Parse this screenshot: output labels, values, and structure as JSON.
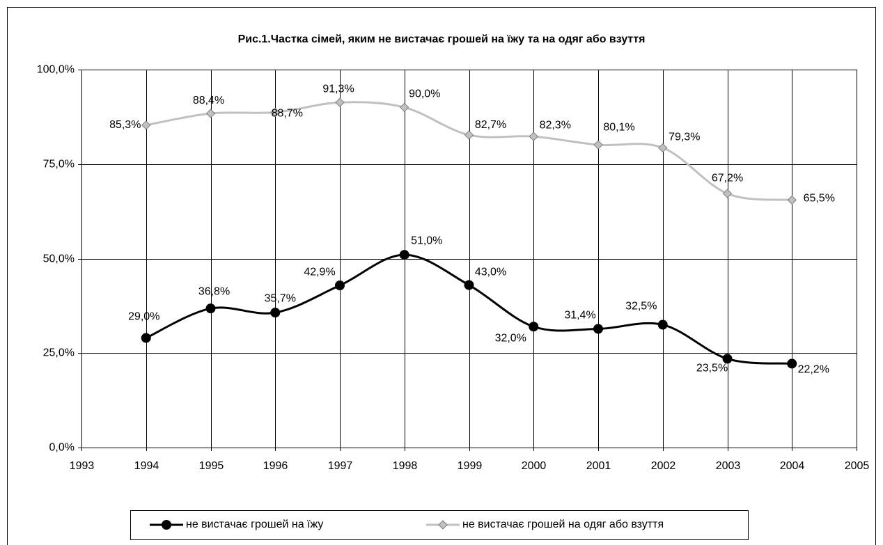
{
  "chart_data": {
    "type": "line",
    "title": "Рис.1.Частка сімей, яким не вистачає грошей на їжу та на одяг або взуття",
    "x": [
      1994,
      1995,
      1996,
      1997,
      1998,
      1999,
      2000,
      2001,
      2002,
      2003,
      2004
    ],
    "xlim": [
      1993,
      2005
    ],
    "xticks": [
      1993,
      1994,
      1995,
      1996,
      1997,
      1998,
      1999,
      2000,
      2001,
      2002,
      2003,
      2004,
      2005
    ],
    "ylim": [
      0,
      100
    ],
    "yticks": [
      {
        "value": 0,
        "label": "0,0%"
      },
      {
        "value": 25,
        "label": "25,0%"
      },
      {
        "value": 50,
        "label": "50,0%"
      },
      {
        "value": 75,
        "label": "75,0%"
      },
      {
        "value": 100,
        "label": "100,0%"
      }
    ],
    "grid": true,
    "smooth": true,
    "legend": "bottom",
    "series": [
      {
        "name": "не вистачає грошей на їжу",
        "color": "#000000",
        "marker": "circle",
        "values": [
          29.0,
          36.8,
          35.7,
          42.9,
          51.0,
          43.0,
          32.0,
          31.4,
          32.5,
          23.5,
          22.2
        ],
        "value_labels": [
          "29,0%",
          "36,8%",
          "35,7%",
          "42,9%",
          "51,0%",
          "43,0%",
          "32,0%",
          "31,4%",
          "32,5%",
          "23,5%",
          "22,2%"
        ]
      },
      {
        "name": "не вистачає грошей на одяг або взуття",
        "color": "#c0c0c0",
        "marker": "diamond",
        "values": [
          85.3,
          88.4,
          88.7,
          91.3,
          90.0,
          82.7,
          82.3,
          80.1,
          79.3,
          67.2,
          65.5
        ],
        "value_labels": [
          "85,3%",
          "88,4%",
          "88,7%",
          "91,3%",
          "90,0%",
          "82,7%",
          "82,3%",
          "80,1%",
          "79,3%",
          "67,2%",
          "65,5%"
        ]
      }
    ]
  }
}
